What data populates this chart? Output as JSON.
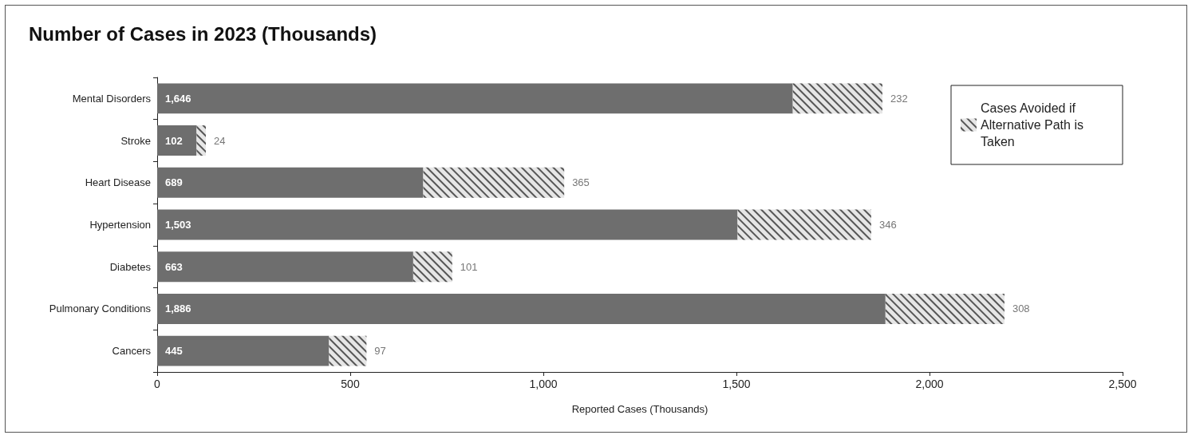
{
  "chart_data": {
    "type": "bar",
    "orientation": "horizontal",
    "stacked": true,
    "title": "Number of Cases in 2023 (Thousands)",
    "xlabel": "Reported Cases (Thousands)",
    "categories": [
      "Mental Disorders",
      "Stroke",
      "Heart Disease",
      "Hypertension",
      "Diabetes",
      "Pulmonary Conditions",
      "Cancers"
    ],
    "series": [
      {
        "color": "#6e6e6e",
        "values": [
          1646,
          102,
          689,
          1503,
          663,
          1886,
          445
        ],
        "value_labels": [
          "1,646",
          "102",
          "689",
          "1,503",
          "663",
          "1,886",
          "445"
        ]
      },
      {
        "name": "Cases Avoided if Alternative Path is Taken",
        "color": "#e6e6e6",
        "values": [
          232,
          24,
          365,
          346,
          101,
          308,
          97
        ],
        "value_labels": [
          "232",
          "24",
          "365",
          "346",
          "101",
          "308",
          "97"
        ]
      }
    ],
    "xlim": [
      0,
      2500
    ],
    "xticks": [
      0,
      500,
      {
        "value": 1000,
        "label": "1,000"
      },
      {
        "value": 1500,
        "label": "1,500"
      },
      {
        "value": 2000,
        "label": "2,000"
      },
      {
        "value": 2500,
        "label": "2,500"
      }
    ],
    "grid": false,
    "legend": "top right"
  }
}
